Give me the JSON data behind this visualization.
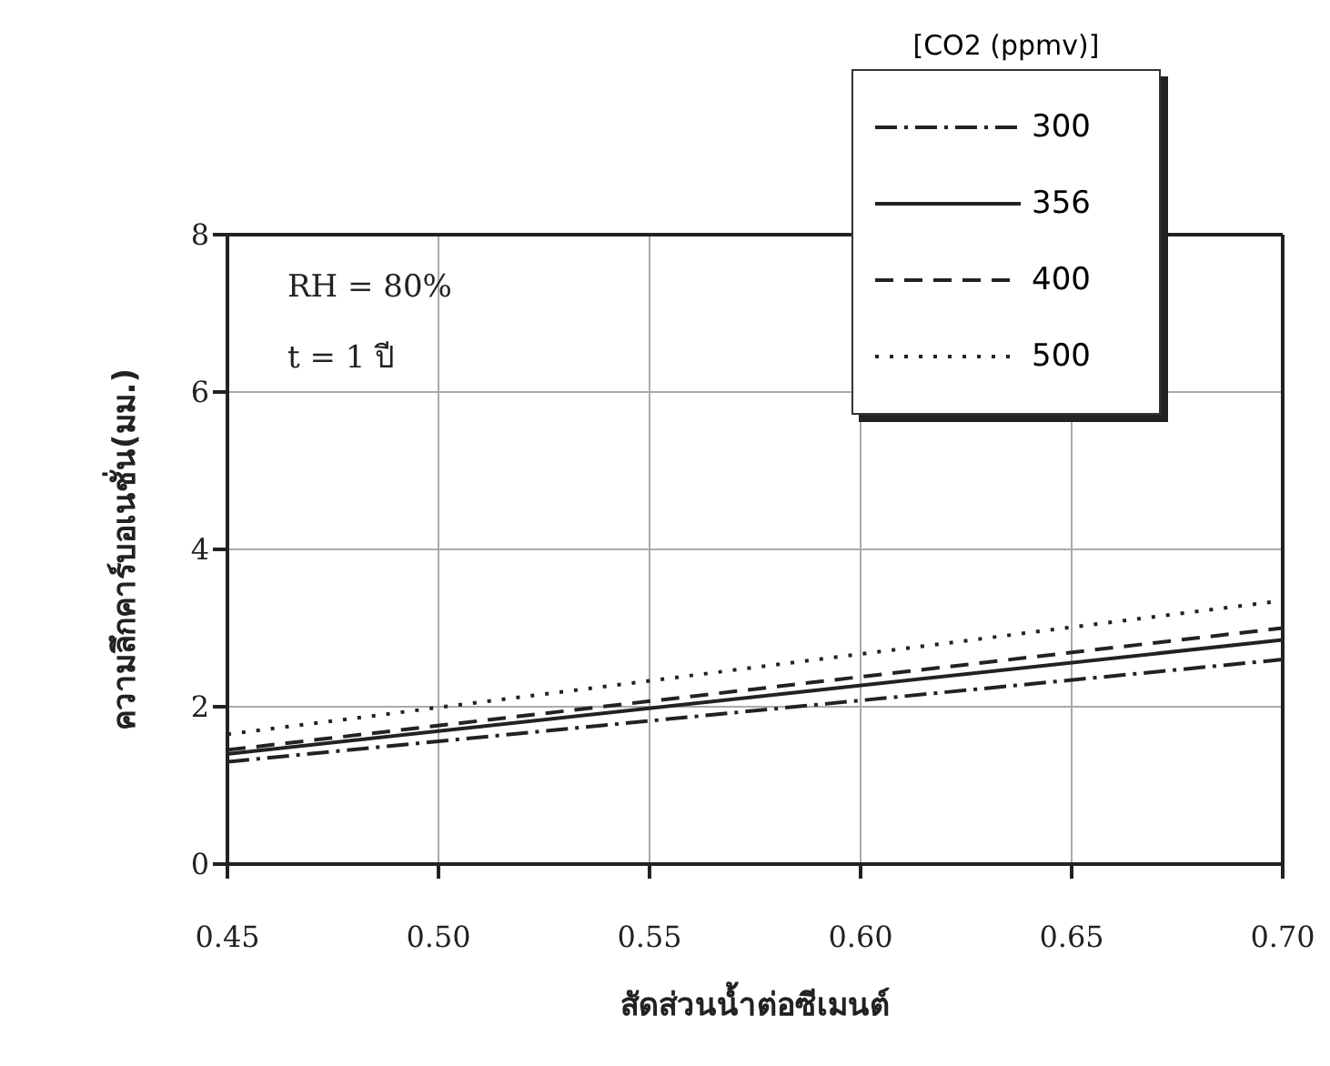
{
  "chart_data": {
    "type": "line",
    "xlabel": "สัดส่วนน้ำต่อซีเมนต์",
    "ylabel": "ความลึกคาร์บอเนชั่น(มม.)",
    "legend_title": "[CO2 (ppmv)]",
    "legend": "top right",
    "grid": true,
    "marker": "none",
    "annotations": [
      "RH = 80%",
      "t = 1 ปี"
    ],
    "xlim": [
      0.45,
      0.7
    ],
    "xticks": [
      {
        "value": 0.45,
        "label": "0.45"
      },
      {
        "value": 0.5,
        "label": "0.50"
      },
      {
        "value": 0.55,
        "label": "0.55"
      },
      {
        "value": 0.6,
        "label": "0.60"
      },
      {
        "value": 0.65,
        "label": "0.65"
      },
      {
        "value": 0.7,
        "label": "0.70"
      }
    ],
    "x": [
      0.45,
      0.7
    ],
    "ylim": [
      0,
      8
    ],
    "yticks": [
      0,
      2,
      4,
      6,
      8
    ],
    "series": [
      {
        "name": "300",
        "color": "#222222",
        "line_style": "dashdot",
        "values": [
          1.3,
          2.6
        ]
      },
      {
        "name": "356",
        "color": "#222222",
        "line_style": "solid",
        "values": [
          1.4,
          2.85
        ]
      },
      {
        "name": "400",
        "color": "#222222",
        "line_style": "dashed",
        "values": [
          1.45,
          3.0
        ]
      },
      {
        "name": "500",
        "color": "#222222",
        "line_style": "dotted",
        "values": [
          1.65,
          3.35
        ]
      }
    ]
  }
}
